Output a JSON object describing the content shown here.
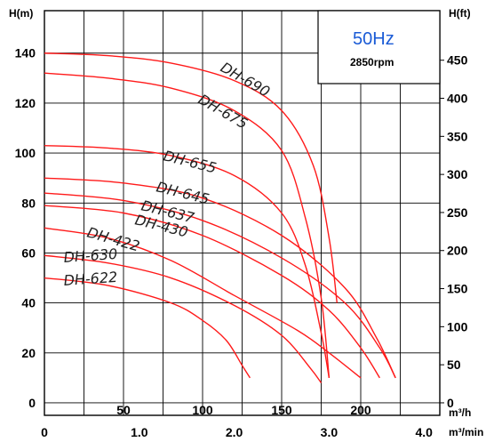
{
  "chart_data": {
    "type": "line",
    "frequency": "50Hz",
    "speed": "2850rpm",
    "hz_color": "#1a5bd6",
    "curve_color": "#ff1a1a",
    "y_left_label": "H(m)",
    "y_right_label": "H(ft)",
    "x_top_label": "m³/h",
    "x_bottom_label": "m³/min",
    "x_top_ticks": [
      "50",
      "100",
      "150",
      "200"
    ],
    "x_bottom_ticks": [
      "0",
      "1.0",
      "2.0",
      "3.0",
      "4.0"
    ],
    "y_left_ticks": [
      "0",
      "20",
      "40",
      "60",
      "80",
      "100",
      "120",
      "140"
    ],
    "y_right_ticks": [
      "0",
      "50",
      "100",
      "150",
      "200",
      "250",
      "300",
      "350",
      "400",
      "450"
    ],
    "xlim": [
      0,
      250
    ],
    "ylim": [
      -5,
      157
    ],
    "grid": true,
    "series": [
      {
        "name": "DH-690",
        "x": [
          0,
          40,
          80,
          120,
          150,
          170,
          180,
          185
        ],
        "y": [
          140,
          139,
          136,
          129,
          117,
          95,
          66,
          40
        ]
      },
      {
        "name": "DH-675",
        "x": [
          0,
          40,
          80,
          120,
          150,
          165,
          175,
          180
        ],
        "y": [
          132,
          130,
          126,
          117,
          101,
          74,
          42,
          10
        ]
      },
      {
        "name": "DH-655",
        "x": [
          0,
          40,
          80,
          120,
          150,
          165,
          175,
          180
        ],
        "y": [
          103,
          102,
          99,
          91,
          76,
          55,
          28,
          10
        ]
      },
      {
        "name": "DH-645",
        "x": [
          0,
          50,
          100,
          150,
          190,
          210,
          222
        ],
        "y": [
          90,
          88,
          82,
          67,
          46,
          26,
          10
        ]
      },
      {
        "name": "DH-637",
        "x": [
          0,
          50,
          100,
          150,
          190,
          212,
          222
        ],
        "y": [
          84,
          81,
          73,
          58,
          40,
          22,
          10
        ]
      },
      {
        "name": "DH-430",
        "x": [
          0,
          50,
          100,
          150,
          180,
          200,
          212
        ],
        "y": [
          79,
          76,
          67,
          51,
          37,
          22,
          10
        ]
      },
      {
        "name": "DH-422",
        "x": [
          0,
          40,
          80,
          120,
          160,
          180,
          200
        ],
        "y": [
          70,
          66,
          57,
          43,
          29,
          20,
          10
        ]
      },
      {
        "name": "DH-630",
        "x": [
          0,
          40,
          80,
          120,
          150,
          168,
          175
        ],
        "y": [
          59,
          56,
          50,
          39,
          27,
          14,
          8
        ]
      },
      {
        "name": "DH-622",
        "x": [
          0,
          40,
          80,
          100,
          115,
          125,
          130
        ],
        "y": [
          50,
          47,
          40,
          33,
          25,
          15,
          10
        ]
      }
    ]
  }
}
